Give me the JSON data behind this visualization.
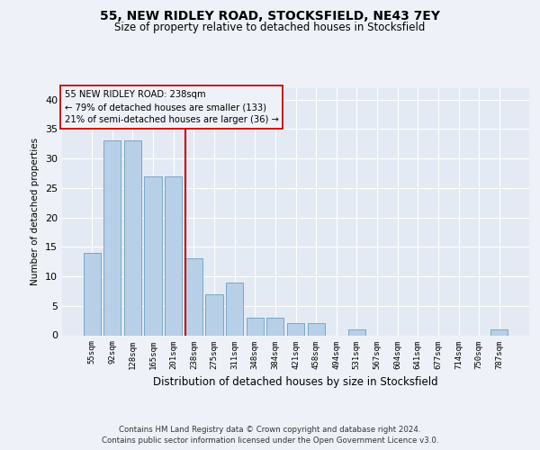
{
  "title": "55, NEW RIDLEY ROAD, STOCKSFIELD, NE43 7EY",
  "subtitle": "Size of property relative to detached houses in Stocksfield",
  "xlabel": "Distribution of detached houses by size in Stocksfield",
  "ylabel": "Number of detached properties",
  "categories": [
    "55sqm",
    "92sqm",
    "128sqm",
    "165sqm",
    "201sqm",
    "238sqm",
    "275sqm",
    "311sqm",
    "348sqm",
    "384sqm",
    "421sqm",
    "458sqm",
    "494sqm",
    "531sqm",
    "567sqm",
    "604sqm",
    "641sqm",
    "677sqm",
    "714sqm",
    "750sqm",
    "787sqm"
  ],
  "values": [
    14,
    33,
    33,
    27,
    27,
    13,
    7,
    9,
    3,
    3,
    2,
    2,
    0,
    1,
    0,
    0,
    0,
    0,
    0,
    0,
    1
  ],
  "bar_color": "#b8cfe8",
  "bar_edgecolor": "#6a9ec0",
  "highlight_index": 5,
  "highlight_line_color": "#cc0000",
  "annotation_lines": [
    "55 NEW RIDLEY ROAD: 238sqm",
    "← 79% of detached houses are smaller (133)",
    "21% of semi-detached houses are larger (36) →"
  ],
  "annotation_box_edgecolor": "#cc0000",
  "ylim": [
    0,
    42
  ],
  "yticks": [
    0,
    5,
    10,
    15,
    20,
    25,
    30,
    35,
    40
  ],
  "footer_line1": "Contains HM Land Registry data © Crown copyright and database right 2024.",
  "footer_line2": "Contains public sector information licensed under the Open Government Licence v3.0.",
  "background_color": "#eef2f8",
  "plot_bg_color": "#e4eaf4"
}
